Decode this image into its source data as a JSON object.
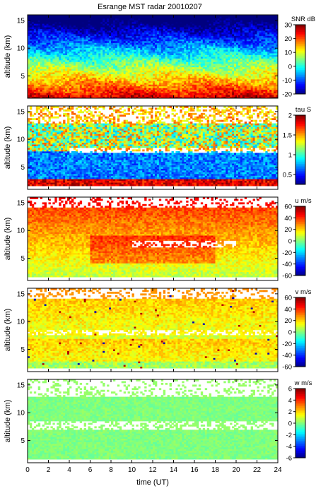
{
  "chart_data": {
    "title": "Esrange MST radar 20010207",
    "xlabel": "time (UT)",
    "xlim": [
      0,
      24
    ],
    "xticks": [
      "0",
      "2",
      "4",
      "6",
      "8",
      "10",
      "12",
      "14",
      "16",
      "18",
      "20",
      "22",
      "24"
    ],
    "panels": [
      {
        "type": "heatmap",
        "ylabel": "altitude (km)",
        "ylim": [
          1,
          16
        ],
        "yticks": [
          "5",
          "10",
          "15"
        ],
        "colorbar_label": "SNR dB",
        "colorbar_ticks": [
          "-20",
          "-10",
          "0",
          "10",
          "20",
          "30"
        ],
        "crange": [
          -20,
          30
        ]
      },
      {
        "type": "heatmap",
        "ylabel": "altitude (km)",
        "ylim": [
          1,
          16
        ],
        "yticks": [
          "5",
          "10",
          "15"
        ],
        "colorbar_label": "tau S",
        "colorbar_ticks": [
          "0.5",
          "1",
          "1.5",
          "2"
        ],
        "crange": [
          0.25,
          2
        ]
      },
      {
        "type": "heatmap",
        "ylabel": "altitude (km)",
        "ylim": [
          1,
          16
        ],
        "yticks": [
          "5",
          "10",
          "15"
        ],
        "colorbar_label": "u m/s",
        "colorbar_ticks": [
          "-60",
          "-40",
          "-20",
          "0",
          "20",
          "40",
          "60"
        ],
        "crange": [
          -60,
          60
        ]
      },
      {
        "type": "heatmap",
        "ylabel": "altitude (km)",
        "ylim": [
          1,
          16
        ],
        "yticks": [
          "5",
          "10",
          "15"
        ],
        "colorbar_label": "v m/s",
        "colorbar_ticks": [
          "-60",
          "-40",
          "-20",
          "0",
          "20",
          "40",
          "60"
        ],
        "crange": [
          -60,
          60
        ]
      },
      {
        "type": "heatmap",
        "ylabel": "altitude (km)",
        "ylim": [
          1,
          16
        ],
        "yticks": [
          "5",
          "10",
          "15"
        ],
        "colorbar_label": "w m/s",
        "colorbar_ticks": [
          "-6",
          "-4",
          "-2",
          "0",
          "2",
          "4",
          "6"
        ],
        "crange": [
          -6,
          6
        ]
      }
    ]
  }
}
